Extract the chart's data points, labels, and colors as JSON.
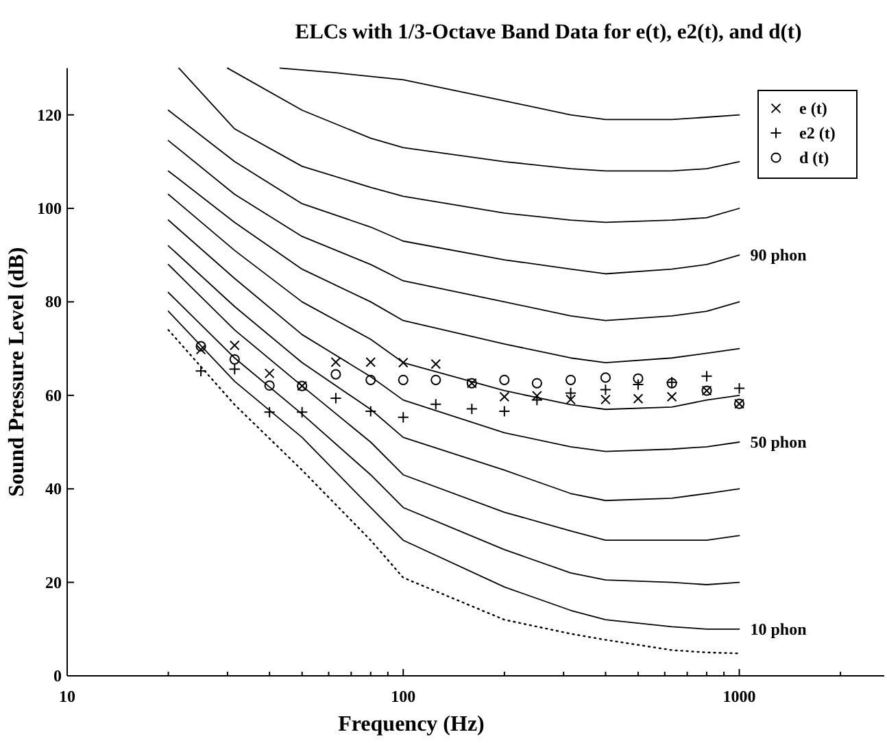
{
  "chart_data": {
    "type": "line",
    "title": "ELCs with 1/3-Octave Band Data for e(t), e2(t), and d(t)",
    "xlabel": "Frequency (Hz)",
    "ylabel": "Sound Pressure Level (dB)",
    "log": "x",
    "xlim": [
      10,
      2700
    ],
    "ylim": [
      0,
      130
    ],
    "xticks": [
      10,
      {
        "value": 20,
        "label": null
      },
      {
        "value": 30,
        "label": null
      },
      {
        "value": 40,
        "label": null
      },
      {
        "value": 50,
        "label": null
      },
      {
        "value": 60,
        "label": null
      },
      {
        "value": 70,
        "label": null
      },
      {
        "value": 80,
        "label": null
      },
      {
        "value": 90,
        "label": null
      },
      100,
      {
        "value": 200,
        "label": null
      },
      {
        "value": 300,
        "label": null
      },
      {
        "value": 400,
        "label": null
      },
      {
        "value": 500,
        "label": null
      },
      {
        "value": 600,
        "label": null
      },
      {
        "value": 700,
        "label": null
      },
      {
        "value": 800,
        "label": null
      },
      {
        "value": 900,
        "label": null
      },
      1000,
      {
        "value": 2000,
        "label": null
      }
    ],
    "yticks": [
      0,
      20,
      40,
      60,
      80,
      100,
      120
    ],
    "grid": false,
    "legend": "top right",
    "series": [
      {
        "color": "#000000",
        "marker": "none",
        "line_style": "dotted",
        "x": [
          20,
          31.5,
          50,
          80,
          100,
          200,
          315,
          400,
          630,
          800,
          1000
        ],
        "values": [
          74,
          58,
          44,
          29,
          21,
          12,
          9,
          7.7,
          5.5,
          5,
          4.8
        ]
      },
      {
        "name": "10 phon",
        "color": "#000000",
        "marker": "none",
        "line_style": "solid",
        "x": [
          20,
          31.5,
          50,
          80,
          100,
          200,
          315,
          400,
          630,
          800,
          1000
        ],
        "values": [
          78,
          63,
          51,
          36,
          29,
          19,
          14,
          12,
          10.5,
          10,
          10
        ]
      },
      {
        "color": "#000000",
        "marker": "none",
        "line_style": "solid",
        "x": [
          20,
          31.5,
          50,
          80,
          100,
          200,
          315,
          400,
          630,
          800,
          1000
        ],
        "values": [
          82,
          68,
          56,
          43,
          36,
          27,
          22,
          20.5,
          20,
          19.5,
          20
        ]
      },
      {
        "color": "#000000",
        "marker": "none",
        "line_style": "solid",
        "x": [
          20,
          31.5,
          50,
          80,
          100,
          200,
          315,
          400,
          630,
          800,
          1000
        ],
        "values": [
          88,
          74,
          62,
          50,
          43,
          35,
          31,
          29,
          29,
          29,
          30
        ]
      },
      {
        "color": "#000000",
        "marker": "none",
        "line_style": "solid",
        "x": [
          20,
          31.5,
          50,
          80,
          100,
          200,
          315,
          400,
          630,
          800,
          1000
        ],
        "values": [
          92,
          79,
          67,
          57,
          51,
          44,
          39,
          37.5,
          38,
          39,
          40
        ]
      },
      {
        "name": "50 phon",
        "color": "#000000",
        "marker": "none",
        "line_style": "solid",
        "x": [
          20,
          31.5,
          50,
          80,
          100,
          200,
          315,
          400,
          630,
          800,
          1000
        ],
        "values": [
          97.5,
          85,
          73,
          64,
          59,
          52,
          49,
          48,
          48.5,
          49,
          50
        ]
      },
      {
        "color": "#000000",
        "marker": "none",
        "line_style": "solid",
        "x": [
          20,
          31.5,
          50,
          80,
          100,
          200,
          315,
          400,
          630,
          800,
          1000
        ],
        "values": [
          103,
          91,
          80,
          72,
          67,
          61,
          58,
          57,
          57.5,
          59,
          60
        ]
      },
      {
        "color": "#000000",
        "marker": "none",
        "line_style": "solid",
        "x": [
          20,
          31.5,
          50,
          80,
          100,
          200,
          315,
          400,
          630,
          800,
          1000
        ],
        "values": [
          108,
          97,
          87,
          80,
          76,
          71,
          68,
          67,
          68,
          69,
          70
        ]
      },
      {
        "color": "#000000",
        "marker": "none",
        "line_style": "solid",
        "x": [
          20,
          31.5,
          50,
          80,
          100,
          200,
          315,
          400,
          630,
          800,
          1000
        ],
        "values": [
          114.5,
          103,
          94,
          88,
          84.5,
          80,
          77,
          76,
          77,
          78,
          80
        ]
      },
      {
        "name": "90 phon",
        "color": "#000000",
        "marker": "none",
        "line_style": "solid",
        "x": [
          20,
          31.5,
          50,
          80,
          100,
          200,
          315,
          400,
          630,
          800,
          1000
        ],
        "values": [
          121,
          110,
          101,
          96,
          93,
          89,
          87,
          86,
          87,
          88,
          90
        ]
      },
      {
        "color": "#000000",
        "marker": "none",
        "line_style": "solid",
        "x": [
          21.5,
          31.5,
          50,
          80,
          100,
          200,
          315,
          400,
          630,
          800,
          1000
        ],
        "values": [
          130,
          117,
          109,
          104.5,
          102.6,
          99,
          97.5,
          97,
          97.5,
          98,
          100
        ]
      },
      {
        "color": "#000000",
        "marker": "none",
        "line_style": "solid",
        "x": [
          30,
          50,
          80,
          100,
          200,
          315,
          400,
          630,
          800,
          1000
        ],
        "values": [
          130,
          121,
          115,
          113,
          110,
          108.5,
          108,
          108,
          108.5,
          110
        ]
      },
      {
        "color": "#000000",
        "marker": "none",
        "line_style": "solid",
        "x": [
          43,
          63,
          100,
          200,
          315,
          400,
          630,
          800,
          1000
        ],
        "values": [
          130,
          129,
          127.5,
          123,
          120,
          119,
          119,
          119.5,
          120
        ]
      },
      {
        "type": "scatter",
        "name": "e (t)",
        "color": "#000000",
        "marker": "cross",
        "x": [
          25,
          31.5,
          40,
          50,
          63,
          80,
          100,
          125,
          160,
          200,
          250,
          315,
          400,
          500,
          630,
          800,
          1000
        ],
        "values": [
          69.8,
          70.7,
          64.7,
          62,
          67.1,
          67.1,
          67,
          66.7,
          62.6,
          59.7,
          59.9,
          59.1,
          59.1,
          59.3,
          59.7,
          61,
          58.2
        ]
      },
      {
        "type": "scatter",
        "name": "e2 (t)",
        "color": "#000000",
        "marker": "plus",
        "x": [
          25,
          31.5,
          40,
          50,
          63,
          80,
          100,
          125,
          160,
          200,
          250,
          315,
          400,
          500,
          630,
          800,
          1000
        ],
        "values": [
          65.2,
          65.6,
          56.4,
          56.4,
          59.4,
          56.6,
          55.3,
          58.1,
          57.1,
          56.6,
          59,
          60.5,
          61.2,
          62.3,
          62.8,
          64.1,
          61.5
        ]
      },
      {
        "type": "scatter",
        "name": "d (t)",
        "color": "#000000",
        "marker": "circle",
        "x": [
          25,
          31.5,
          40,
          50,
          63,
          80,
          100,
          125,
          160,
          200,
          250,
          315,
          400,
          500,
          630,
          800,
          1000
        ],
        "values": [
          70.5,
          67.7,
          62.1,
          62,
          64.5,
          63.3,
          63.3,
          63.3,
          62.6,
          63.3,
          62.6,
          63.3,
          63.8,
          63.6,
          62.6,
          61,
          58.2
        ]
      }
    ]
  }
}
